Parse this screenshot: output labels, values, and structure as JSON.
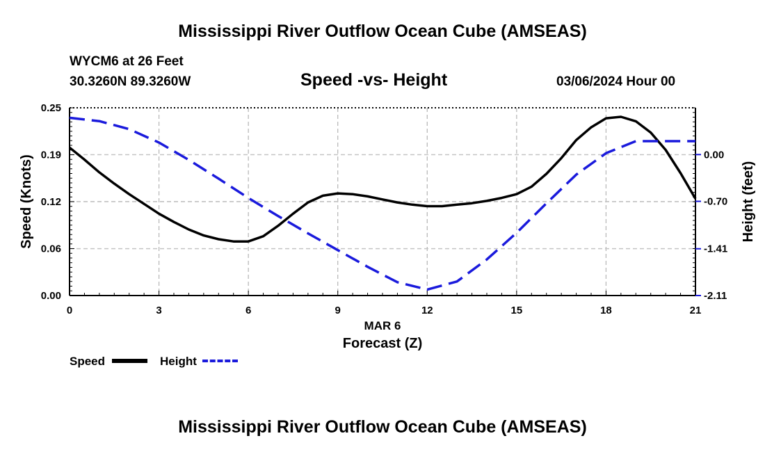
{
  "chart_data": {
    "type": "line",
    "title": "Mississippi River Outflow Ocean Cube (AMSEAS)",
    "station": "WYCM6 at 26 Feet",
    "location": "30.3260N  89.3260W",
    "subtitle": "Speed -vs- Height",
    "datetime": "03/06/2024 Hour 00",
    "xlabel": "Forecast (Z)",
    "xlabel_date": "MAR 6",
    "ylabel_left": "Speed (Knots)",
    "ylabel_right": "Height (feet)",
    "x_ticks": [
      "0",
      "3",
      "6",
      "9",
      "12",
      "15",
      "18",
      "21"
    ],
    "x_tick_values": [
      0,
      3,
      6,
      9,
      12,
      15,
      18,
      21
    ],
    "y_left_ticks": [
      "0.00",
      "0.06",
      "0.12",
      "0.19",
      "0.25"
    ],
    "y_left_tick_values": [
      0.0,
      0.0625,
      0.125,
      0.1875,
      0.25
    ],
    "y_right_ticks": [
      "-2.11",
      "-1.41",
      "-0.70",
      "0.00"
    ],
    "y_right_tick_values": [
      -2.11,
      -1.41,
      -0.7,
      0.0
    ],
    "xlim": [
      0,
      21
    ],
    "ylim_left": [
      0,
      0.25
    ],
    "ylim_right": [
      -2.11,
      0.7
    ],
    "grid": true,
    "series": [
      {
        "name": "Speed",
        "axis": "left",
        "color": "#000000",
        "style": "solid",
        "x": [
          0,
          0.5,
          1,
          1.5,
          2,
          2.5,
          3,
          3.5,
          4,
          4.5,
          5,
          5.5,
          6,
          6.5,
          7,
          7.5,
          8,
          8.5,
          9,
          9.5,
          10,
          10.5,
          11,
          11.5,
          12,
          12.5,
          13,
          13.5,
          14,
          14.5,
          15,
          15.5,
          16,
          16.5,
          17,
          17.5,
          18,
          18.5,
          19,
          19.5,
          20,
          20.5,
          21
        ],
        "values": [
          0.197,
          0.181,
          0.164,
          0.149,
          0.135,
          0.122,
          0.109,
          0.098,
          0.088,
          0.08,
          0.075,
          0.072,
          0.072,
          0.079,
          0.093,
          0.109,
          0.124,
          0.133,
          0.136,
          0.135,
          0.132,
          0.128,
          0.124,
          0.121,
          0.119,
          0.119,
          0.121,
          0.123,
          0.126,
          0.13,
          0.135,
          0.145,
          0.162,
          0.183,
          0.207,
          0.224,
          0.236,
          0.238,
          0.232,
          0.217,
          0.194,
          0.163,
          0.129
        ]
      },
      {
        "name": "Height",
        "axis": "right",
        "color": "#1a1adc",
        "style": "dashed",
        "x": [
          0,
          1,
          2,
          3,
          4,
          5,
          6,
          7,
          8,
          9,
          10,
          11,
          12,
          13,
          14,
          15,
          16,
          17,
          18,
          19,
          20,
          21
        ],
        "values": [
          0.55,
          0.5,
          0.38,
          0.18,
          -0.08,
          -0.36,
          -0.65,
          -0.92,
          -1.18,
          -1.43,
          -1.68,
          -1.91,
          -2.02,
          -1.9,
          -1.57,
          -1.17,
          -0.73,
          -0.3,
          0.02,
          0.2,
          0.2,
          0.2
        ]
      }
    ],
    "legend": [
      {
        "label": "Speed",
        "color": "#000000",
        "style": "solid"
      },
      {
        "label": "Height",
        "color": "#1a1adc",
        "style": "dashed"
      }
    ],
    "footer_title": "Mississippi River Outflow Ocean Cube (AMSEAS)"
  }
}
